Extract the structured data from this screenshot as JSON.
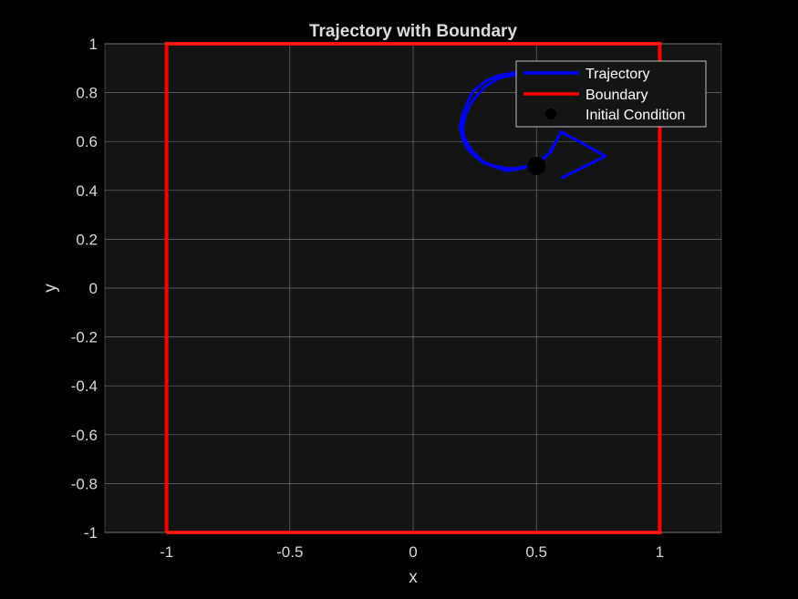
{
  "chart_data": {
    "type": "line",
    "title": "Trajectory with Boundary",
    "xlabel": "x",
    "ylabel": "y",
    "xlim": [
      -1.25,
      1.25
    ],
    "ylim": [
      -1,
      1
    ],
    "grid": true,
    "legend_position": "top-right",
    "xticks": [
      -1,
      -0.5,
      0,
      0.5,
      1
    ],
    "xtick_labels": [
      "-1",
      "-0.5",
      "0",
      "0.5",
      "1"
    ],
    "yticks": [
      -1,
      -0.8,
      -0.6,
      -0.4,
      -0.2,
      0,
      0.2,
      0.4,
      0.6,
      0.8,
      1
    ],
    "ytick_labels": [
      "-1",
      "-0.8",
      "-0.6",
      "-0.4",
      "-0.2",
      "0",
      "0.2",
      "0.4",
      "0.6",
      "0.8",
      "1"
    ],
    "series": [
      {
        "name": "Trajectory",
        "color": "#0000ff",
        "style": "line",
        "points": [
          [
            0.6,
            0.45
          ],
          [
            0.78,
            0.54
          ],
          [
            0.6,
            0.64
          ],
          [
            0.58,
            0.6
          ],
          [
            0.55,
            0.55
          ],
          [
            0.5,
            0.51
          ],
          [
            0.44,
            0.49
          ],
          [
            0.38,
            0.48
          ],
          [
            0.32,
            0.5
          ],
          [
            0.28,
            0.52
          ],
          [
            0.24,
            0.56
          ],
          [
            0.21,
            0.61
          ],
          [
            0.2,
            0.65
          ],
          [
            0.21,
            0.7
          ],
          [
            0.23,
            0.75
          ],
          [
            0.26,
            0.79
          ],
          [
            0.3,
            0.83
          ],
          [
            0.35,
            0.86
          ],
          [
            0.4,
            0.87
          ],
          [
            0.46,
            0.88
          ],
          [
            0.5,
            0.87
          ],
          [
            0.46,
            0.88
          ],
          [
            0.4,
            0.88
          ],
          [
            0.35,
            0.87
          ],
          [
            0.3,
            0.85
          ],
          [
            0.26,
            0.82
          ],
          [
            0.24,
            0.8
          ],
          [
            0.22,
            0.76
          ],
          [
            0.2,
            0.71
          ],
          [
            0.19,
            0.66
          ],
          [
            0.2,
            0.61
          ],
          [
            0.22,
            0.57
          ],
          [
            0.25,
            0.54
          ],
          [
            0.29,
            0.51
          ],
          [
            0.33,
            0.5
          ],
          [
            0.38,
            0.49
          ],
          [
            0.42,
            0.49
          ],
          [
            0.47,
            0.5
          ],
          [
            0.5,
            0.52
          ],
          [
            0.53,
            0.53
          ],
          [
            0.56,
            0.56
          ],
          [
            0.58,
            0.6
          ]
        ]
      },
      {
        "name": "Boundary",
        "color": "#ff0000",
        "style": "line",
        "points": [
          [
            -1,
            -1
          ],
          [
            1,
            -1
          ],
          [
            1,
            1
          ],
          [
            -1,
            1
          ],
          [
            -1,
            -1
          ]
        ]
      },
      {
        "name": "Initial Condition",
        "color": "#000000",
        "style": "marker",
        "points": [
          [
            0.5,
            0.5
          ]
        ]
      }
    ]
  }
}
